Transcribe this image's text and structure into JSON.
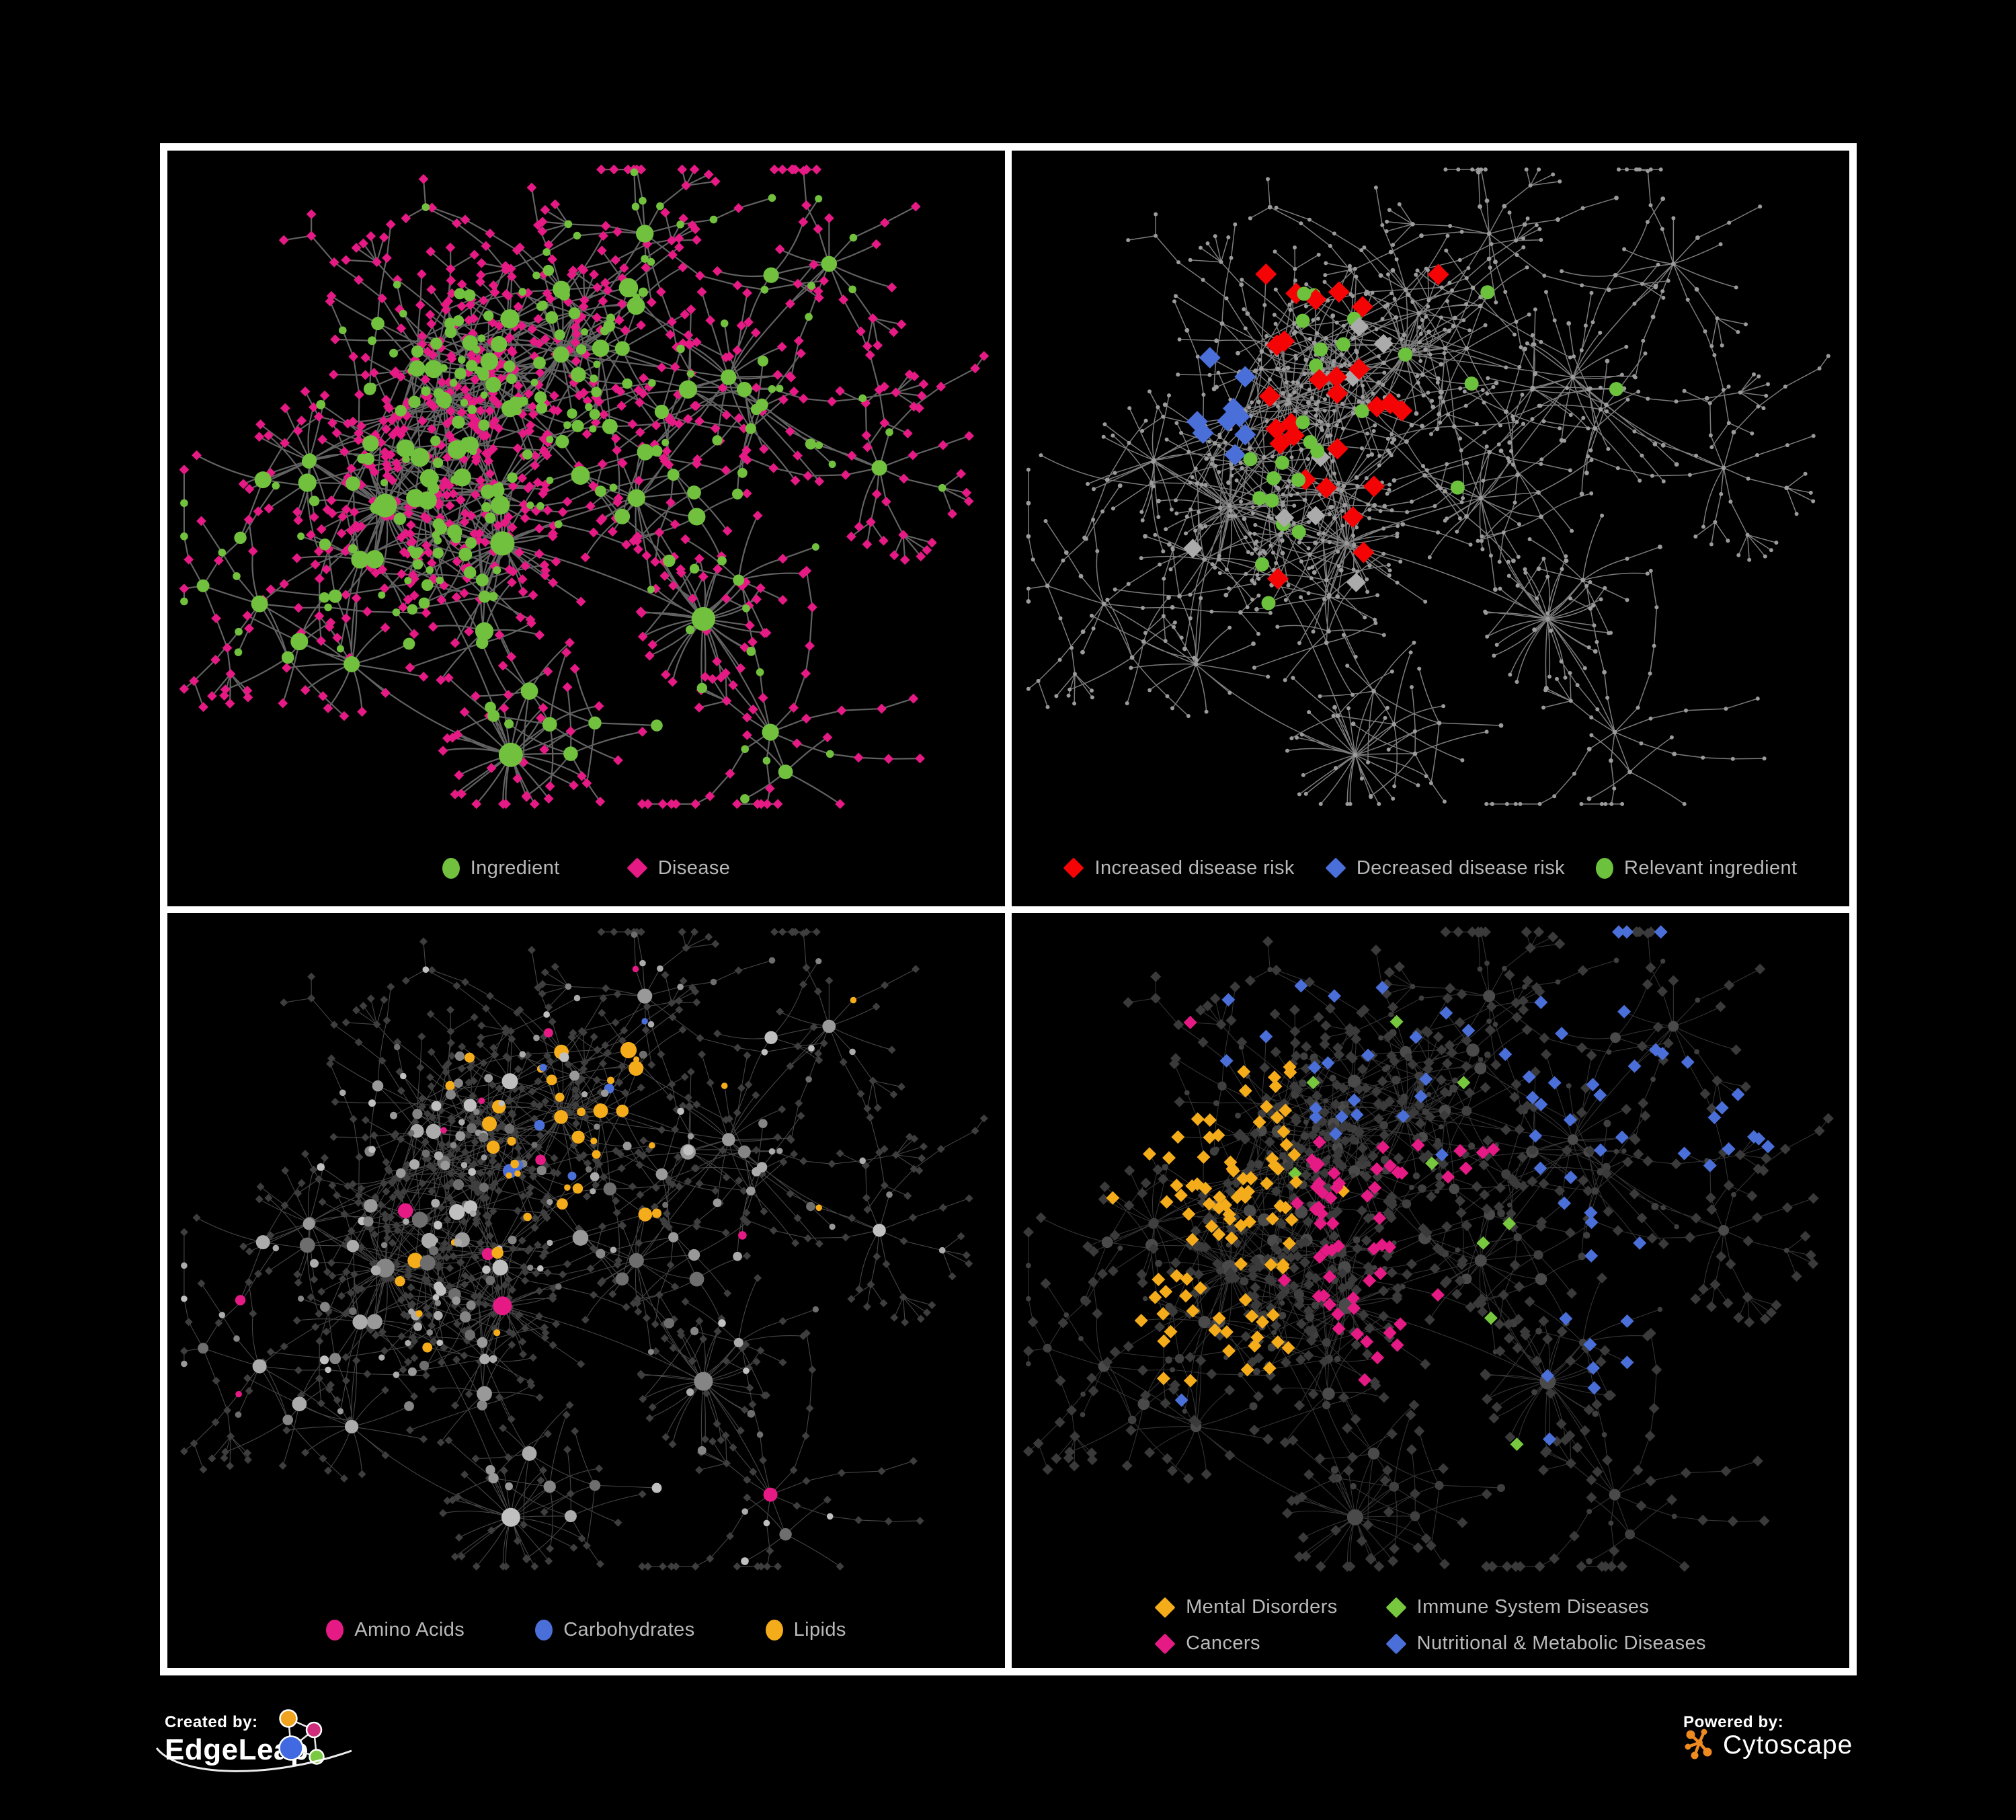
{
  "panels": [
    {
      "name": "ingredient-disease-network",
      "legend": [
        {
          "label": "Ingredient",
          "shape": "circle",
          "color": "#72c13e"
        },
        {
          "label": "Disease",
          "shape": "diamond",
          "color": "#e61a85"
        }
      ]
    },
    {
      "name": "disease-risk-network",
      "legend": [
        {
          "label": "Increased disease risk",
          "shape": "diamond",
          "color": "#f40404"
        },
        {
          "label": "Decreased disease risk",
          "shape": "diamond",
          "color": "#4a6fd8"
        },
        {
          "label": "Relevant ingredient",
          "shape": "circle",
          "color": "#6cc13d"
        }
      ]
    },
    {
      "name": "ingredient-class-network",
      "legend": [
        {
          "label": "Amino Acids",
          "shape": "circle",
          "color": "#e61a85"
        },
        {
          "label": "Carbohydrates",
          "shape": "circle",
          "color": "#4a6fd8"
        },
        {
          "label": "Lipids",
          "shape": "circle",
          "color": "#f5ac1b"
        }
      ]
    },
    {
      "name": "disease-class-network",
      "legend": [
        {
          "label": "Mental Disorders",
          "shape": "diamond",
          "color": "#f5ac1b"
        },
        {
          "label": "Immune System Diseases",
          "shape": "diamond",
          "color": "#77c83e"
        },
        {
          "label": "Cancers",
          "shape": "diamond",
          "color": "#e61a85"
        },
        {
          "label": "Nutritional & Metabolic Diseases",
          "shape": "diamond",
          "color": "#4a6fd8"
        }
      ]
    }
  ],
  "footer": {
    "created_by_label": "Created by:",
    "created_by_brand": "EdgeLeap",
    "powered_by_label": "Powered by:",
    "powered_by_brand": "Cytoscape"
  },
  "style": {
    "page_background": "#000000",
    "panel_border": "#ffffff",
    "legend_text": "#b9b9b9",
    "network_colors": {
      "ingredient_green": "#72c13e",
      "relevant_green": "#6cc13d",
      "disease_pink": "#e61a85",
      "risk_red": "#f40404",
      "risk_blue": "#4a6fd8",
      "neutral_gray": "#ababab",
      "lipids_orange": "#f5ac1b",
      "carbs_blue": "#4a6fd8",
      "amino_pink": "#e61a85",
      "immune_green": "#77c83e",
      "nutritional_blue": "#4a6fd8",
      "dim_diamond": "#3a3a3a",
      "dim_diamond_light": "#3e3e3e",
      "dim_circle": "#3f3f3f",
      "tiny_dot_gray": "#9b9b9b",
      "edgeleap_orange": "#f0a31f",
      "edgeleap_magenta": "#cf2d7b",
      "edgeleap_blue": "#4169e1",
      "edgeleap_green": "#7ac943",
      "cytoscape_orange": "#ee8a20"
    }
  },
  "network": {
    "seed": 11,
    "shared_topology": true,
    "views": [
      "all ingredients as green circles and diseases as pink diamonds",
      "whole network dimmed to small gray dots; highlighted diamonds red (increased risk), blue (decreased risk), gray (neutral) and green circles (relevant ingredients)",
      "diseases dimmed to dark diamonds; ingredient circles colored pink (amino acids), blue (carbohydrates), orange (lipids), gray otherwise",
      "ingredients dimmed to dark circles; disease diamonds colored orange (mental), pink (cancers), green (immune), blue (nutritional and metabolic), dark gray otherwise"
    ]
  }
}
